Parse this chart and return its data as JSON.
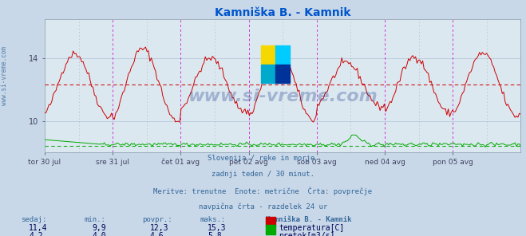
{
  "title": "Kamniška B. - Kamnik",
  "title_color": "#0055cc",
  "bg_color": "#c8d8e8",
  "plot_bg_color": "#dce8f0",
  "grid_color": "#b0c4d8",
  "tick_color": "#404060",
  "watermark": "www.si-vreme.com",
  "watermark_color": "#1a3a8a",
  "watermark_alpha": 0.3,
  "side_text": "www.si-vreme.com",
  "side_text_color": "#336699",
  "xticklabels": [
    "tor 30 jul",
    "sre 31 jul",
    "čet 01 avg",
    "pet 02 avg",
    "sob 03 avg",
    "ned 04 avg",
    "pon 05 avg"
  ],
  "yticks_temp": [
    10,
    14
  ],
  "ylim_temp": [
    8.0,
    16.5
  ],
  "temp_color": "#cc0000",
  "flow_color": "#00aa00",
  "vline_color": "#cc00cc",
  "vline_alpha": 0.8,
  "dashed_vline_color": "#888888",
  "subtitle_lines": [
    "Slovenija / reke in morje.",
    "zadnji teden / 30 minut.",
    "Meritve: trenutne  Enote: metrične  Črta: povprečje",
    "navpična črta - razdelek 24 ur"
  ],
  "subtitle_color": "#336699",
  "table_header_color": "#336699",
  "table_value_color": "#000055",
  "table_bold_color": "#0000bb",
  "table_headers": [
    "sedaj:",
    "min.:",
    "povpr.:",
    "maks.:",
    "Kamniška B. - Kamnik"
  ],
  "temp_stats": [
    "11,4",
    "9,9",
    "12,3",
    "15,3"
  ],
  "flow_stats": [
    "4,2",
    "4,0",
    "4,6",
    "5,8"
  ],
  "temp_label": "temperatura[C]",
  "flow_label": "pretok[m3/s]",
  "n_points": 336,
  "temp_avg": 12.3,
  "flow_avg": 4.6,
  "temp_min": 9.9,
  "temp_max": 15.3,
  "flow_min": 4.0,
  "flow_max": 5.8,
  "flow_display_min": 8.0,
  "flow_display_max": 9.2,
  "flow_avg_display": 8.3,
  "logo_yellow": "#f5d800",
  "logo_cyan": "#00ccff",
  "logo_blue": "#003399",
  "logo_teal": "#00aacc"
}
